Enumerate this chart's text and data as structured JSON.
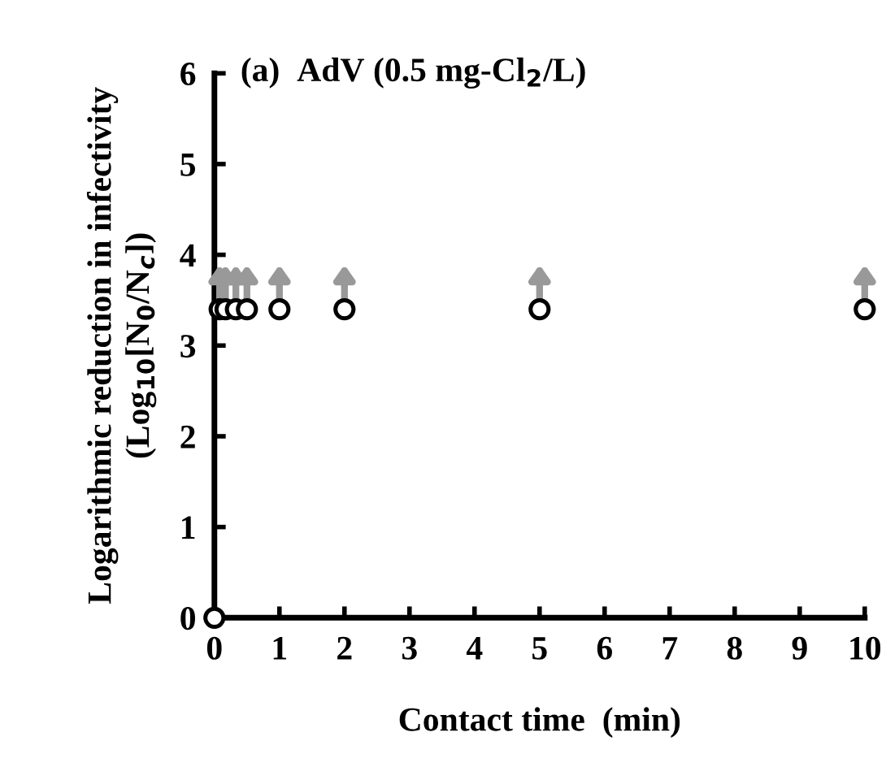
{
  "chart_data": {
    "type": "scatter",
    "title": "(a)  AdV (0.5 mg-Cl$_{2}$/L)",
    "xlabel": "Contact time  (min)",
    "ylabel": "Logarithmic reduction in infectivity\n(Log$_{10}$[N$_{0}$/N$_{c}$])",
    "x": [
      0,
      0.08,
      0.17,
      0.33,
      0.5,
      1,
      2,
      5,
      10
    ],
    "values": [
      0,
      3.4,
      3.4,
      3.4,
      3.4,
      3.4,
      3.4,
      3.4,
      3.4
    ],
    "color": "#000000",
    "marker": "circle",
    "xlim": [
      0,
      10
    ],
    "ylim": [
      0,
      6
    ],
    "xticks": [
      0,
      1,
      2,
      3,
      4,
      5,
      6,
      7,
      8,
      9,
      10
    ],
    "yticks": [
      0,
      1,
      2,
      3,
      4,
      5,
      6
    ],
    "grid": false,
    "legend": false
  }
}
